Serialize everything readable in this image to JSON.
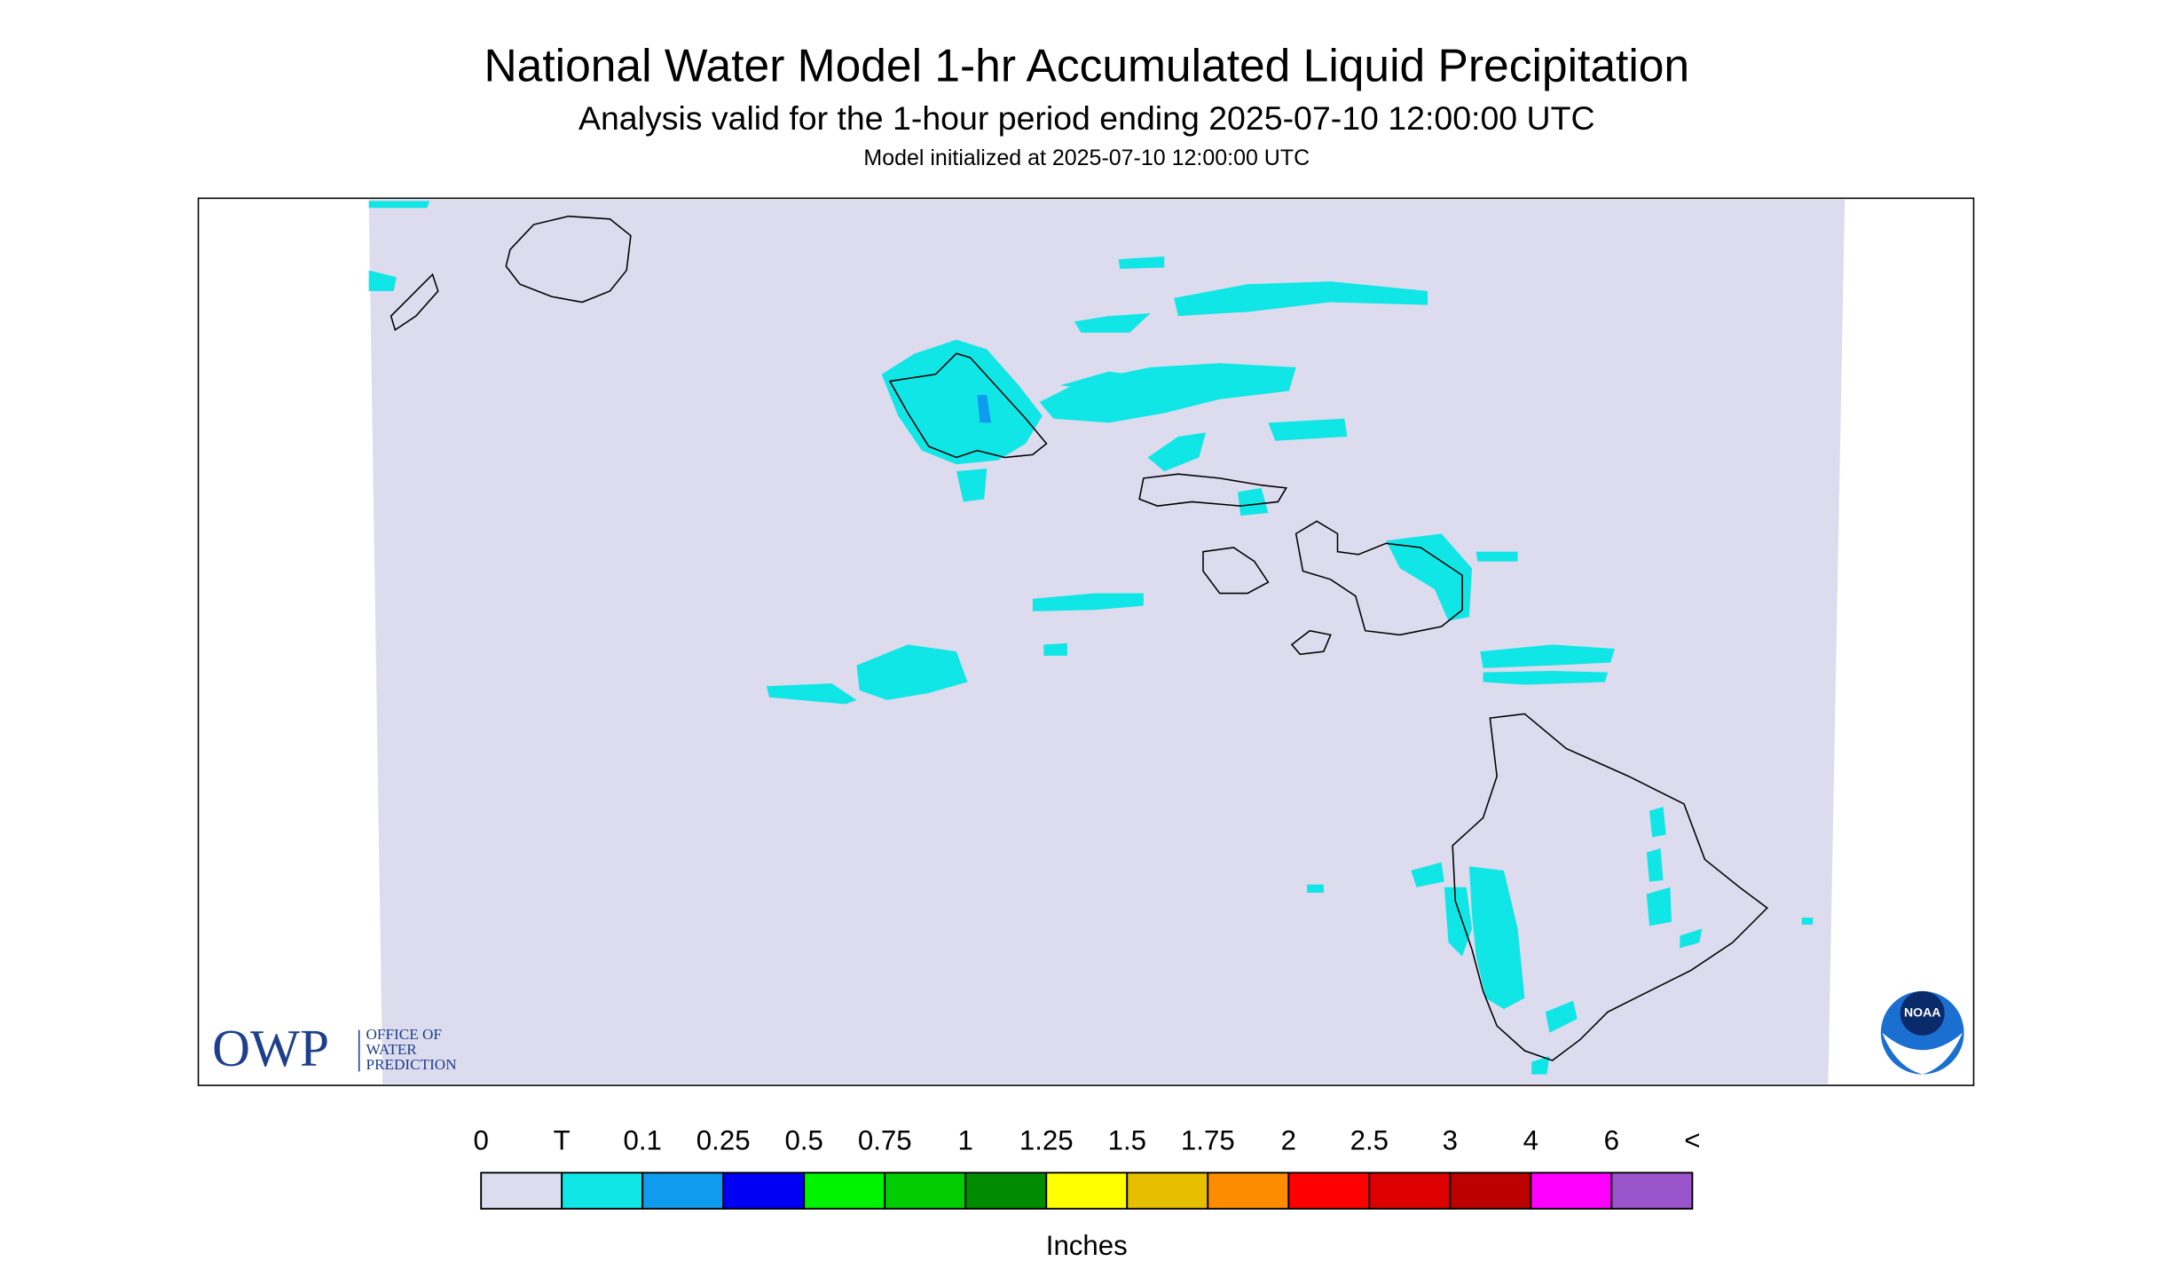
{
  "title": "National Water Model 1-hr Accumulated Liquid Precipitation",
  "subtitle": "Analysis valid for the 1-hour period ending 2025-07-10 12:00:00 UTC",
  "init": "Model initialized at 2025-07-10 12:00:00 UTC",
  "logo": {
    "abbr": "OWP",
    "lines": [
      "OFFICE OF",
      "WATER",
      "PREDICTION"
    ],
    "noaa": "NOAA"
  },
  "legend": {
    "labels": [
      "0",
      "T",
      "0.1",
      "0.25",
      "0.5",
      "0.75",
      "1",
      "1.25",
      "1.5",
      "1.75",
      "2",
      "2.5",
      "3",
      "4",
      "6",
      "<"
    ],
    "colors": [
      "#dcdcee",
      "#10e6e6",
      "#109cee",
      "#0000f4",
      "#00f400",
      "#00cc00",
      "#008c00",
      "#ffff00",
      "#e6bf00",
      "#ff8c00",
      "#ff0000",
      "#dc0000",
      "#bc0000",
      "#ff00ff",
      "#9a55cc"
    ],
    "unit": "Inches"
  }
}
